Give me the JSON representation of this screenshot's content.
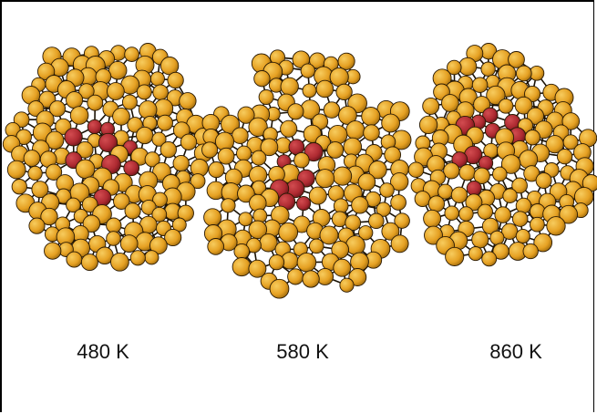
{
  "panels": [
    {
      "label": "480 K"
    },
    {
      "label": "580 K"
    },
    {
      "label": "860 K"
    }
  ],
  "colors": {
    "gold_atom": "#E8A325",
    "gold_atom_highlight": "#F5C24A",
    "impurity_atom": "#B52F35",
    "bond": "#1a1205",
    "frame": "#000000"
  }
}
